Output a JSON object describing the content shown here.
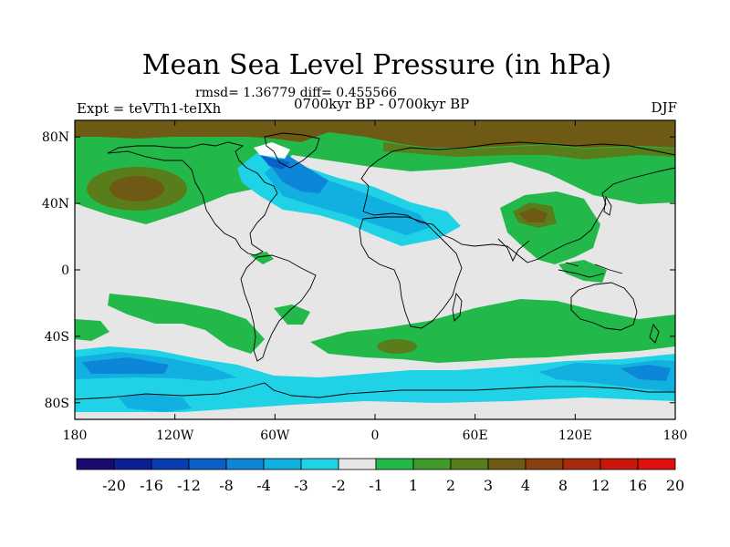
{
  "title": "Mean Sea Level Pressure (in hPa)",
  "stats": "rmsd= 1.36779 diff= 0.455566",
  "experiment": "Expt = teVTh1-teIXh",
  "period": "0700kyr BP - 0700kyr BP",
  "season": "DJF",
  "map": {
    "y_ticks": [
      {
        "label": "80N",
        "lat": 80
      },
      {
        "label": "40N",
        "lat": 40
      },
      {
        "label": "0",
        "lat": 0
      },
      {
        "label": "40S",
        "lat": -40
      },
      {
        "label": "80S",
        "lat": -80
      }
    ],
    "x_ticks": [
      {
        "label": "180",
        "lon": -180
      },
      {
        "label": "120W",
        "lon": -120
      },
      {
        "label": "60W",
        "lon": -60
      },
      {
        "label": "0",
        "lon": 0
      },
      {
        "label": "60E",
        "lon": 60
      },
      {
        "label": "120E",
        "lon": 120
      },
      {
        "label": "180",
        "lon": 180
      }
    ]
  },
  "colorbar": {
    "boxes": [
      "#1a0a6e",
      "#0c1f96",
      "#0a3db4",
      "#0b5fc8",
      "#0d86d8",
      "#12b0e0",
      "#1fd2e6",
      "#e6e6e6",
      "#22b84a",
      "#3f9a2a",
      "#5a7d1c",
      "#6e5a14",
      "#8a4010",
      "#a82a0e",
      "#c8180c",
      "#e01010"
    ],
    "labels": [
      "-20",
      "-16",
      "-12",
      "-8",
      "-4",
      "-3",
      "-2",
      "-1",
      "1",
      "2",
      "3",
      "4",
      "8",
      "12",
      "16",
      "20"
    ]
  },
  "colors": {
    "neutral": "#e6e6e6",
    "green": "#22b84a",
    "olive": "#5a7d1c",
    "brown": "#6e5a14",
    "cyan": "#1fd2e6",
    "lightblue": "#12b0e0",
    "blue": "#0d86d8",
    "darkblue": "#0b5fc8"
  }
}
